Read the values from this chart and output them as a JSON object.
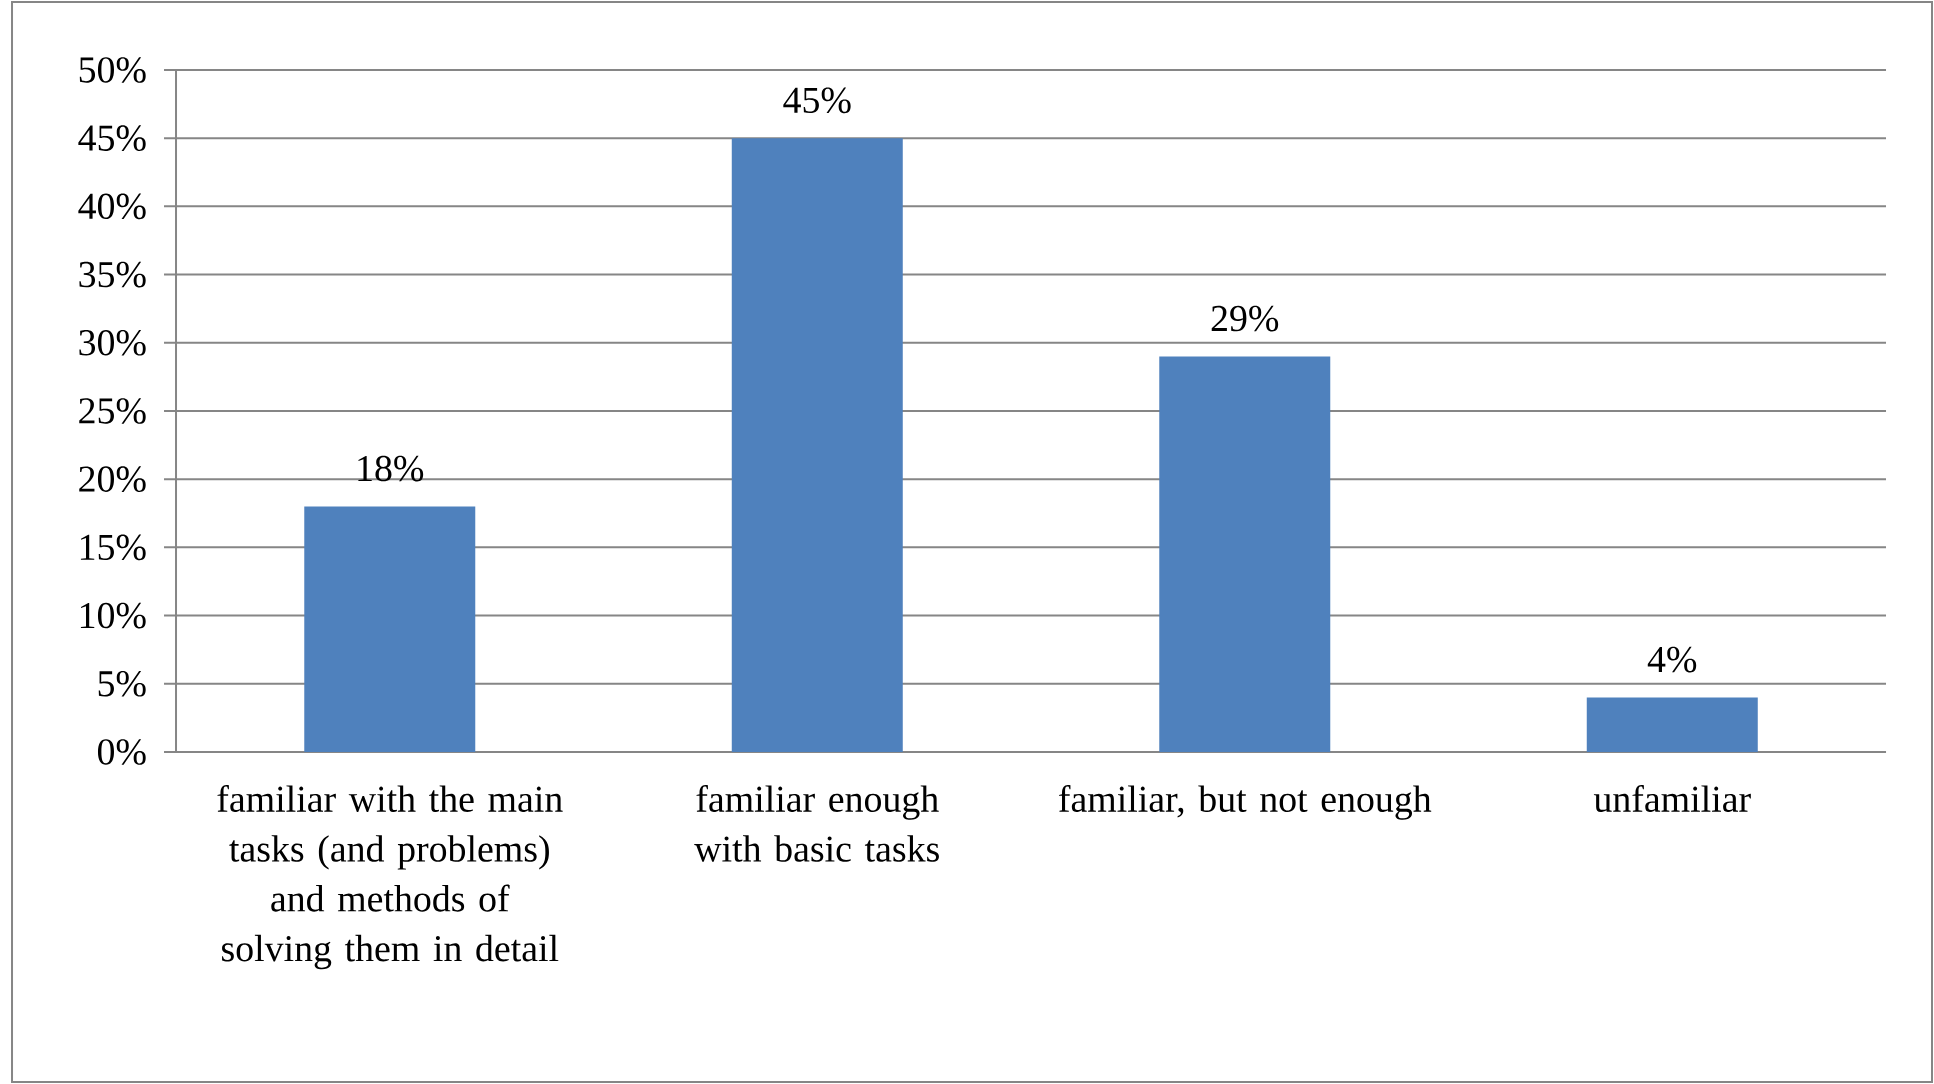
{
  "chart_data": {
    "type": "bar",
    "categories": [
      "familiar with the main tasks (and problems) and methods of solving them in detail",
      "familiar enough with basic tasks",
      "familiar, but not enough",
      "unfamiliar"
    ],
    "values": [
      18,
      45,
      29,
      4
    ],
    "color": "#4f81bd",
    "ylim": [
      0,
      50
    ],
    "yticks": [
      {
        "value": 0,
        "label": "0%"
      },
      {
        "value": 5,
        "label": "5%"
      },
      {
        "value": 10,
        "label": "10%"
      },
      {
        "value": 15,
        "label": "15%"
      },
      {
        "value": 20,
        "label": "20%"
      },
      {
        "value": 25,
        "label": "25%"
      },
      {
        "value": 30,
        "label": "30%"
      },
      {
        "value": 35,
        "label": "35%"
      },
      {
        "value": 40,
        "label": "40%"
      },
      {
        "value": 45,
        "label": "45%"
      },
      {
        "value": 50,
        "label": "50%"
      }
    ],
    "value_labels": [
      "18%",
      "45%",
      "29%",
      "4%"
    ],
    "grid": "y"
  }
}
